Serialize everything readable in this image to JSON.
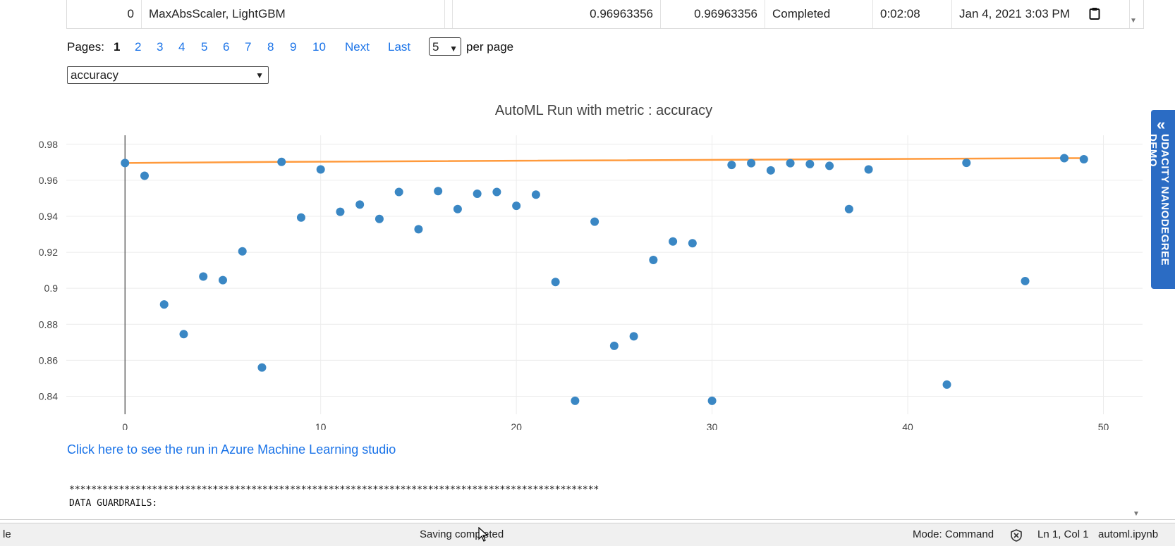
{
  "table_row": {
    "index": "0",
    "algorithm": "MaxAbsScaler, LightGBM",
    "score1": "0.96963356",
    "score2": "0.96963356",
    "status": "Completed",
    "duration": "0:02:08",
    "start_time": "Jan 4, 2021 3:03 PM"
  },
  "pager": {
    "label": "Pages:",
    "current": "1",
    "pages": [
      "2",
      "3",
      "4",
      "5",
      "6",
      "7",
      "8",
      "9",
      "10"
    ],
    "next": "Next",
    "last": "Last",
    "per_page_value": "5",
    "per_page_label": "per page"
  },
  "metric_select": {
    "value": "accuracy"
  },
  "chart_data": {
    "type": "scatter",
    "title": "AutoML Run with metric : accuracy",
    "xlabel": "",
    "ylabel": "",
    "xlim": [
      -3,
      52
    ],
    "ylim": [
      0.83,
      0.985
    ],
    "x_ticks": [
      0,
      10,
      20,
      30,
      40,
      50
    ],
    "y_ticks": [
      0.84,
      0.86,
      0.88,
      0.9,
      0.92,
      0.94,
      0.96,
      0.98
    ],
    "y_tick_labels": [
      "0.84",
      "0.86",
      "0.88",
      "0.9",
      "0.92",
      "0.94",
      "0.96",
      "0.98"
    ],
    "grid": true,
    "legend": "none",
    "colors": {
      "points": "#3a87c4",
      "best_line": "#ff9a3c"
    },
    "points": {
      "x": [
        0,
        1,
        2,
        3,
        4,
        5,
        6,
        7,
        8,
        9,
        10,
        11,
        12,
        13,
        14,
        15,
        16,
        17,
        18,
        19,
        20,
        21,
        22,
        23,
        24,
        25,
        26,
        27,
        28,
        29,
        30,
        31,
        32,
        33,
        34,
        35,
        36,
        37,
        38,
        42,
        43,
        46,
        48,
        49
      ],
      "y": [
        0.9696,
        0.9625,
        0.891,
        0.8745,
        0.9065,
        0.9045,
        0.9205,
        0.856,
        0.9702,
        0.9393,
        0.966,
        0.9425,
        0.9465,
        0.9385,
        0.9535,
        0.9328,
        0.954,
        0.944,
        0.9525,
        0.9535,
        0.9458,
        0.952,
        0.9035,
        0.8375,
        0.937,
        0.868,
        0.8733,
        0.9157,
        0.926,
        0.925,
        0.8375,
        0.9685,
        0.9695,
        0.9655,
        0.9695,
        0.969,
        0.968,
        0.944,
        0.966,
        0.8465,
        0.9697,
        0.904,
        0.9723,
        0.9717
      ]
    },
    "best_line": {
      "x": [
        0,
        8,
        48,
        49
      ],
      "y": [
        0.9696,
        0.9702,
        0.9723,
        0.9723
      ]
    }
  },
  "studio_link": "Click here to see the run in Azure Machine Learning studio",
  "output_text": {
    "stars": "************************************************************************************************",
    "guardrails": "DATA GUARDRAILS:"
  },
  "side_tab": {
    "label": "UDACITY NANODEGREE DEMO"
  },
  "status_bar": {
    "left": "le",
    "saving": "Saving completed",
    "mode": "Mode: Command",
    "position": "Ln 1, Col 1",
    "filename": "automl.ipynb"
  }
}
